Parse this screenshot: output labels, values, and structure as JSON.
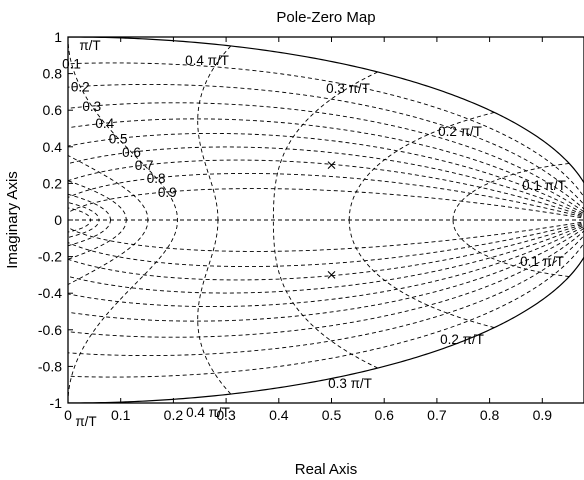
{
  "chart_data": {
    "type": "scatter",
    "title": "Pole-Zero Map",
    "xlabel": "Real Axis",
    "ylabel": "Imaginary Axis",
    "xlim": [
      0,
      1
    ],
    "ylim": [
      -1,
      1
    ],
    "x_ticks": [
      {
        "value": 0,
        "label": "0"
      },
      {
        "value": 0.1,
        "label": "0.1"
      },
      {
        "value": 0.2,
        "label": "0.2"
      },
      {
        "value": 0.3,
        "label": "0.3"
      },
      {
        "value": 0.4,
        "label": "0.4"
      },
      {
        "value": 0.5,
        "label": "0.5"
      },
      {
        "value": 0.6,
        "label": "0.6"
      },
      {
        "value": 0.7,
        "label": "0.7"
      },
      {
        "value": 0.8,
        "label": "0.8"
      },
      {
        "value": 0.9,
        "label": "0.9"
      }
    ],
    "y_ticks": [
      {
        "value": 1,
        "label": "1"
      },
      {
        "value": 0.8,
        "label": "0.8"
      },
      {
        "value": 0.6,
        "label": "0.6"
      },
      {
        "value": 0.4,
        "label": "0.4"
      },
      {
        "value": 0.2,
        "label": "0.2"
      },
      {
        "value": 0,
        "label": "0"
      },
      {
        "value": -0.2,
        "label": "-0.2"
      },
      {
        "value": -0.4,
        "label": "-0.4"
      },
      {
        "value": -0.6,
        "label": "-0.6"
      },
      {
        "value": -0.8,
        "label": "-0.8"
      },
      {
        "value": -1,
        "label": "-1"
      }
    ],
    "poles": [
      {
        "x": 0.5,
        "y": 0.3
      },
      {
        "x": 0.5,
        "y": -0.3
      }
    ],
    "zeros": [
      {
        "x": 1.0,
        "y": 0
      }
    ],
    "damping_grid": [
      {
        "zeta": 0.1,
        "label": "0.1"
      },
      {
        "zeta": 0.2,
        "label": "0.2"
      },
      {
        "zeta": 0.3,
        "label": "0.3"
      },
      {
        "zeta": 0.4,
        "label": "0.4"
      },
      {
        "zeta": 0.5,
        "label": "0.5"
      },
      {
        "zeta": 0.6,
        "label": "0.6"
      },
      {
        "zeta": 0.7,
        "label": "0.7"
      },
      {
        "zeta": 0.8,
        "label": "0.8"
      },
      {
        "zeta": 0.9,
        "label": "0.9"
      }
    ],
    "natural_frequency_grid": [
      {
        "wn_over_pi_T": 0.1,
        "label": "0.1 π/T"
      },
      {
        "wn_over_pi_T": 0.2,
        "label": "0.2 π/T"
      },
      {
        "wn_over_pi_T": 0.3,
        "label": "0.3 π/T"
      },
      {
        "wn_over_pi_T": 0.4,
        "label": "0.4 π/T"
      },
      {
        "wn_over_pi_T": 0.5,
        "label": ""
      },
      {
        "wn_over_pi_T": 0.6,
        "label": ""
      },
      {
        "wn_over_pi_T": 0.7,
        "label": ""
      },
      {
        "wn_over_pi_T": 0.8,
        "label": ""
      },
      {
        "wn_over_pi_T": 0.9,
        "label": ""
      },
      {
        "wn_over_pi_T": 1.0,
        "label": "π/T"
      }
    ],
    "grid": true,
    "legend": "none"
  }
}
